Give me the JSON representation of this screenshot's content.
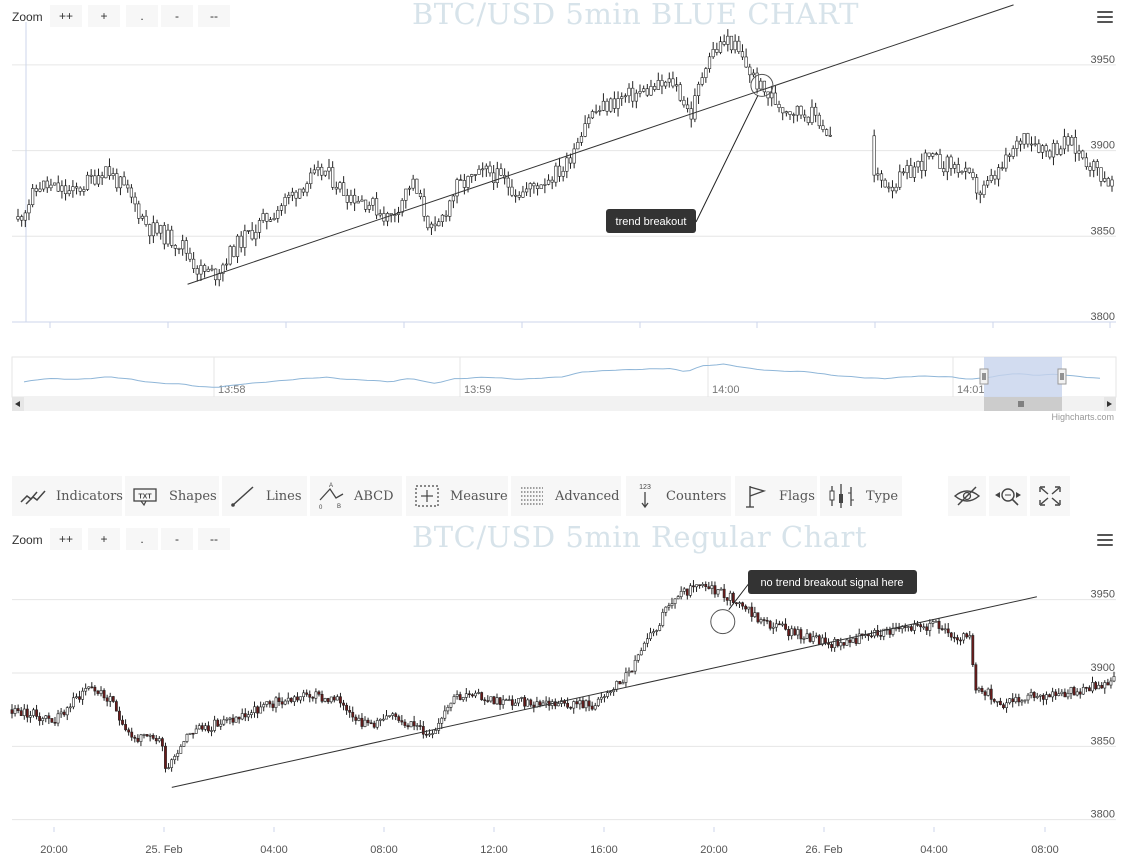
{
  "blue_chart": {
    "title": "BTC/USD 5min BLUE CHART",
    "zoom_label": "Zoom",
    "zoom_buttons": [
      "++",
      "+",
      ".",
      "-",
      "--"
    ],
    "y_ticks": [
      3800,
      3850,
      3900,
      3950
    ],
    "annotation": "trend breakout",
    "navigator_ticks": [
      "13:58",
      "13:59",
      "14:00",
      "14:01"
    ]
  },
  "credit": "Highcharts.com",
  "toolbar": {
    "items": [
      {
        "label": "Indicators",
        "icon": "indicators-icon"
      },
      {
        "label": "Shapes",
        "icon": "shapes-icon"
      },
      {
        "label": "Lines",
        "icon": "lines-icon"
      },
      {
        "label": "ABCD",
        "icon": "abcd-icon"
      },
      {
        "label": "Measure",
        "icon": "measure-icon"
      },
      {
        "label": "Advanced",
        "icon": "advanced-icon"
      },
      {
        "label": "Counters",
        "icon": "counters-icon"
      },
      {
        "label": "Flags",
        "icon": "flag-icon"
      },
      {
        "label": "Type",
        "icon": "type-icon"
      }
    ],
    "right_icons": [
      "hide-icon",
      "zoom-to-fit-icon",
      "fullscreen-icon"
    ]
  },
  "regular_chart": {
    "title": "BTC/USD 5min Regular Chart",
    "zoom_label": "Zoom",
    "zoom_buttons": [
      "++",
      "+",
      ".",
      "-",
      "--"
    ],
    "y_ticks": [
      3800,
      3850,
      3900,
      3950
    ],
    "x_ticks": [
      "20:00",
      "25. Feb",
      "04:00",
      "08:00",
      "12:00",
      "16:00",
      "20:00",
      "26. Feb",
      "04:00",
      "08:00"
    ],
    "annotation": "no trend breakout signal here"
  },
  "chart_data": [
    {
      "type": "candlestick",
      "title": "BTC/USD 5min BLUE CHART",
      "y_ticks": [
        3800,
        3850,
        3900,
        3950
      ],
      "ylim": [
        3800,
        3975
      ],
      "close_path": [
        [
          0,
          3860
        ],
        [
          0.02,
          3880
        ],
        [
          0.05,
          3875
        ],
        [
          0.08,
          3890
        ],
        [
          0.1,
          3875
        ],
        [
          0.12,
          3855
        ],
        [
          0.15,
          3845
        ],
        [
          0.165,
          3830
        ],
        [
          0.18,
          3828
        ],
        [
          0.2,
          3845
        ],
        [
          0.23,
          3862
        ],
        [
          0.26,
          3880
        ],
        [
          0.28,
          3888
        ],
        [
          0.3,
          3875
        ],
        [
          0.32,
          3870
        ],
        [
          0.34,
          3860
        ],
        [
          0.36,
          3882
        ],
        [
          0.38,
          3850
        ],
        [
          0.4,
          3878
        ],
        [
          0.43,
          3888
        ],
        [
          0.46,
          3875
        ],
        [
          0.5,
          3890
        ],
        [
          0.52,
          3920
        ],
        [
          0.55,
          3930
        ],
        [
          0.6,
          3940
        ],
        [
          0.615,
          3920
        ],
        [
          0.63,
          3955
        ],
        [
          0.65,
          3965
        ],
        [
          0.665,
          3950
        ],
        [
          0.68,
          3935
        ],
        [
          0.7,
          3925
        ],
        [
          0.73,
          3920
        ],
        [
          0.745,
          3905
        ],
        [
          0.75,
          3900
        ],
        [
          0.78,
          3885
        ],
        [
          0.8,
          3880
        ],
        [
          0.83,
          3895
        ],
        [
          0.86,
          3890
        ],
        [
          0.88,
          3875
        ],
        [
          0.9,
          3890
        ],
        [
          0.92,
          3910
        ],
        [
          0.94,
          3900
        ],
        [
          0.96,
          3905
        ],
        [
          1.0,
          3880
        ]
      ],
      "trendline": {
        "from": [
          0.155,
          3822
        ],
        "to": [
          0.91,
          3985
        ]
      },
      "annotations": [
        {
          "text": "trend breakout",
          "at": [
            0.68,
            3938
          ]
        }
      ],
      "navigator": {
        "tick_labels": [
          "13:58",
          "13:59",
          "14:00",
          "14:01"
        ]
      }
    },
    {
      "type": "candlestick",
      "title": "BTC/USD 5min Regular Chart",
      "y_ticks": [
        3800,
        3850,
        3900,
        3950
      ],
      "x_tick_labels": [
        "20:00",
        "25. Feb",
        "04:00",
        "08:00",
        "12:00",
        "16:00",
        "20:00",
        "26. Feb",
        "04:00",
        "08:00"
      ],
      "ylim": [
        3795,
        3975
      ],
      "close_path": [
        [
          0,
          3875
        ],
        [
          0.04,
          3868
        ],
        [
          0.07,
          3892
        ],
        [
          0.09,
          3880
        ],
        [
          0.11,
          3855
        ],
        [
          0.135,
          3855
        ],
        [
          0.14,
          3835
        ],
        [
          0.16,
          3860
        ],
        [
          0.2,
          3868
        ],
        [
          0.24,
          3880
        ],
        [
          0.27,
          3885
        ],
        [
          0.3,
          3880
        ],
        [
          0.32,
          3865
        ],
        [
          0.35,
          3870
        ],
        [
          0.38,
          3858
        ],
        [
          0.4,
          3885
        ],
        [
          0.43,
          3883
        ],
        [
          0.45,
          3880
        ],
        [
          0.48,
          3880
        ],
        [
          0.5,
          3880
        ],
        [
          0.53,
          3878
        ],
        [
          0.56,
          3900
        ],
        [
          0.6,
          3950
        ],
        [
          0.62,
          3958
        ],
        [
          0.64,
          3957
        ],
        [
          0.66,
          3948
        ],
        [
          0.68,
          3935
        ],
        [
          0.72,
          3925
        ],
        [
          0.74,
          3920
        ],
        [
          0.76,
          3922
        ],
        [
          0.8,
          3930
        ],
        [
          0.84,
          3932
        ],
        [
          0.87,
          3922
        ],
        [
          0.875,
          3885
        ],
        [
          0.88,
          3890
        ],
        [
          0.9,
          3878
        ],
        [
          0.93,
          3885
        ],
        [
          0.96,
          3887
        ],
        [
          1.0,
          3895
        ]
      ],
      "trendline": {
        "from": [
          0.145,
          3822
        ],
        "to": [
          0.93,
          3952
        ]
      },
      "annotations": [
        {
          "text": "no trend breakout signal here",
          "at": [
            0.645,
            3935
          ]
        }
      ]
    }
  ]
}
